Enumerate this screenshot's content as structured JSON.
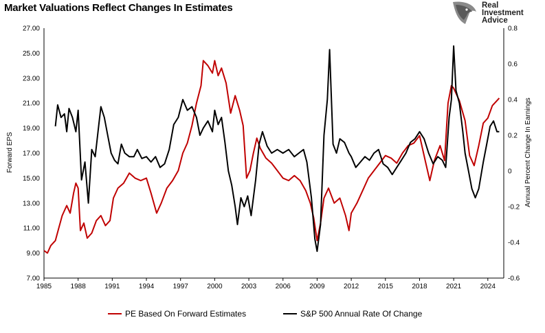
{
  "title": "Market Valuations Reflect Changes In Estimates",
  "logo": {
    "line1": "Real",
    "line2": "Investment",
    "line3": "Advice",
    "icon": "eagle-head-icon"
  },
  "colors": {
    "series_pe": "#c00000",
    "series_sp": "#000000"
  },
  "chart_data": {
    "type": "line",
    "title": "Market Valuations Reflect Changes In Estimates",
    "xlabel": "",
    "ylabel_left": "Forward EPS",
    "ylabel_right": "Annual Percent Change In Earnings",
    "xlim": [
      1985,
      2025.4
    ],
    "ylim_left": [
      7,
      27
    ],
    "ylim_right": [
      -0.6,
      0.8
    ],
    "x_ticks": [
      "1985",
      "1988",
      "1991",
      "1994",
      "1997",
      "2000",
      "2003",
      "2006",
      "2009",
      "2012",
      "2015",
      "2018",
      "2021",
      "2024"
    ],
    "y_ticks_left": [
      "27.00",
      "25.00",
      "23.00",
      "21.00",
      "19.00",
      "17.00",
      "15.00",
      "13.00",
      "11.00",
      "9.00",
      "7.00"
    ],
    "y_ticks_right": [
      "0.8",
      "0.6",
      "0.4",
      "0.2",
      "0",
      "-0.2",
      "-0.4",
      "-0.6"
    ],
    "grid": false,
    "legend": "bottom",
    "series": [
      {
        "name": "PE Based On Forward Estimates",
        "axis": "left",
        "points": [
          [
            1985.0,
            9.2
          ],
          [
            1985.3,
            9.0
          ],
          [
            1985.6,
            9.6
          ],
          [
            1986.0,
            10.0
          ],
          [
            1986.3,
            11.0
          ],
          [
            1986.6,
            12.0
          ],
          [
            1987.0,
            12.8
          ],
          [
            1987.3,
            12.2
          ],
          [
            1987.6,
            13.8
          ],
          [
            1987.8,
            14.6
          ],
          [
            1988.0,
            14.2
          ],
          [
            1988.2,
            10.8
          ],
          [
            1988.5,
            11.4
          ],
          [
            1988.8,
            10.2
          ],
          [
            1989.2,
            10.6
          ],
          [
            1989.6,
            11.6
          ],
          [
            1990.0,
            12.0
          ],
          [
            1990.4,
            11.2
          ],
          [
            1990.8,
            11.6
          ],
          [
            1991.1,
            13.4
          ],
          [
            1991.5,
            14.2
          ],
          [
            1992.0,
            14.6
          ],
          [
            1992.5,
            15.4
          ],
          [
            1993.0,
            15.0
          ],
          [
            1993.5,
            14.8
          ],
          [
            1994.0,
            15.0
          ],
          [
            1994.4,
            13.8
          ],
          [
            1994.9,
            12.2
          ],
          [
            1995.3,
            13.0
          ],
          [
            1995.8,
            14.2
          ],
          [
            1996.3,
            14.8
          ],
          [
            1996.8,
            15.6
          ],
          [
            1997.2,
            17.0
          ],
          [
            1997.6,
            17.8
          ],
          [
            1998.0,
            19.2
          ],
          [
            1998.4,
            21.0
          ],
          [
            1998.8,
            22.4
          ],
          [
            1999.0,
            24.4
          ],
          [
            1999.4,
            24.0
          ],
          [
            1999.8,
            23.4
          ],
          [
            2000.0,
            24.4
          ],
          [
            2000.3,
            23.2
          ],
          [
            2000.6,
            23.8
          ],
          [
            2001.0,
            22.6
          ],
          [
            2001.4,
            20.2
          ],
          [
            2001.8,
            21.6
          ],
          [
            2002.2,
            20.4
          ],
          [
            2002.5,
            19.2
          ],
          [
            2002.8,
            15.0
          ],
          [
            2003.1,
            15.6
          ],
          [
            2003.4,
            17.0
          ],
          [
            2003.7,
            18.2
          ],
          [
            2004.0,
            17.4
          ],
          [
            2004.5,
            16.6
          ],
          [
            2005.0,
            16.2
          ],
          [
            2005.5,
            15.6
          ],
          [
            2006.0,
            15.0
          ],
          [
            2006.5,
            14.8
          ],
          [
            2007.0,
            15.2
          ],
          [
            2007.5,
            14.8
          ],
          [
            2008.0,
            14.0
          ],
          [
            2008.4,
            13.0
          ],
          [
            2008.7,
            11.8
          ],
          [
            2009.0,
            10.0
          ],
          [
            2009.3,
            11.4
          ],
          [
            2009.6,
            13.4
          ],
          [
            2010.0,
            14.2
          ],
          [
            2010.5,
            13.0
          ],
          [
            2011.0,
            13.4
          ],
          [
            2011.5,
            12.0
          ],
          [
            2011.8,
            10.8
          ],
          [
            2012.0,
            12.2
          ],
          [
            2012.5,
            13.0
          ],
          [
            2013.0,
            14.0
          ],
          [
            2013.5,
            15.0
          ],
          [
            2014.0,
            15.6
          ],
          [
            2014.5,
            16.2
          ],
          [
            2015.0,
            16.8
          ],
          [
            2015.5,
            16.6
          ],
          [
            2016.0,
            16.2
          ],
          [
            2016.5,
            17.0
          ],
          [
            2017.0,
            17.6
          ],
          [
            2017.5,
            17.8
          ],
          [
            2018.0,
            18.4
          ],
          [
            2018.5,
            16.4
          ],
          [
            2018.9,
            14.8
          ],
          [
            2019.3,
            16.4
          ],
          [
            2019.8,
            17.6
          ],
          [
            2020.2,
            16.4
          ],
          [
            2020.5,
            21.0
          ],
          [
            2020.8,
            22.4
          ],
          [
            2021.0,
            22.2
          ],
          [
            2021.5,
            21.2
          ],
          [
            2022.0,
            19.6
          ],
          [
            2022.4,
            16.8
          ],
          [
            2022.8,
            16.0
          ],
          [
            2023.2,
            17.6
          ],
          [
            2023.6,
            19.4
          ],
          [
            2024.0,
            19.8
          ],
          [
            2024.4,
            20.8
          ],
          [
            2024.8,
            21.2
          ],
          [
            2025.0,
            21.4
          ]
        ]
      },
      {
        "name": "S&P 500 Annual Rate Of Change",
        "axis": "right",
        "points": [
          [
            1986.0,
            0.25
          ],
          [
            1986.2,
            0.37
          ],
          [
            1986.5,
            0.3
          ],
          [
            1986.8,
            0.32
          ],
          [
            1987.0,
            0.22
          ],
          [
            1987.2,
            0.35
          ],
          [
            1987.5,
            0.3
          ],
          [
            1987.8,
            0.22
          ],
          [
            1988.0,
            0.34
          ],
          [
            1988.3,
            -0.05
          ],
          [
            1988.6,
            0.05
          ],
          [
            1988.9,
            -0.18
          ],
          [
            1989.2,
            0.12
          ],
          [
            1989.5,
            0.08
          ],
          [
            1989.8,
            0.25
          ],
          [
            1990.0,
            0.36
          ],
          [
            1990.3,
            0.3
          ],
          [
            1990.6,
            0.2
          ],
          [
            1990.9,
            0.1
          ],
          [
            1991.2,
            0.06
          ],
          [
            1991.5,
            0.04
          ],
          [
            1991.8,
            0.15
          ],
          [
            1992.1,
            0.1
          ],
          [
            1992.5,
            0.08
          ],
          [
            1992.9,
            0.08
          ],
          [
            1993.2,
            0.12
          ],
          [
            1993.6,
            0.07
          ],
          [
            1994.0,
            0.08
          ],
          [
            1994.4,
            0.05
          ],
          [
            1994.8,
            0.08
          ],
          [
            1995.2,
            0.02
          ],
          [
            1995.6,
            0.04
          ],
          [
            1996.0,
            0.12
          ],
          [
            1996.4,
            0.26
          ],
          [
            1996.8,
            0.3
          ],
          [
            1997.2,
            0.4
          ],
          [
            1997.6,
            0.34
          ],
          [
            1998.0,
            0.36
          ],
          [
            1998.4,
            0.3
          ],
          [
            1998.7,
            0.2
          ],
          [
            1999.0,
            0.24
          ],
          [
            1999.4,
            0.28
          ],
          [
            1999.8,
            0.22
          ],
          [
            2000.0,
            0.34
          ],
          [
            2000.3,
            0.26
          ],
          [
            2000.6,
            0.3
          ],
          [
            2000.9,
            0.16
          ],
          [
            2001.2,
            0.0
          ],
          [
            2001.5,
            -0.08
          ],
          [
            2001.8,
            -0.2
          ],
          [
            2002.0,
            -0.3
          ],
          [
            2002.3,
            -0.15
          ],
          [
            2002.6,
            -0.2
          ],
          [
            2002.9,
            -0.14
          ],
          [
            2003.2,
            -0.25
          ],
          [
            2003.6,
            -0.05
          ],
          [
            2003.9,
            0.15
          ],
          [
            2004.2,
            0.22
          ],
          [
            2004.6,
            0.14
          ],
          [
            2005.0,
            0.1
          ],
          [
            2005.5,
            0.12
          ],
          [
            2006.0,
            0.1
          ],
          [
            2006.5,
            0.12
          ],
          [
            2007.0,
            0.08
          ],
          [
            2007.4,
            0.1
          ],
          [
            2007.8,
            0.12
          ],
          [
            2008.1,
            0.05
          ],
          [
            2008.5,
            -0.15
          ],
          [
            2008.8,
            -0.38
          ],
          [
            2009.0,
            -0.45
          ],
          [
            2009.3,
            -0.3
          ],
          [
            2009.6,
            0.2
          ],
          [
            2009.9,
            0.4
          ],
          [
            2010.1,
            0.68
          ],
          [
            2010.4,
            0.15
          ],
          [
            2010.7,
            0.1
          ],
          [
            2011.0,
            0.18
          ],
          [
            2011.4,
            0.16
          ],
          [
            2011.8,
            0.1
          ],
          [
            2012.0,
            0.08
          ],
          [
            2012.4,
            0.02
          ],
          [
            2012.8,
            0.05
          ],
          [
            2013.2,
            0.08
          ],
          [
            2013.6,
            0.06
          ],
          [
            2014.0,
            0.1
          ],
          [
            2014.4,
            0.12
          ],
          [
            2014.8,
            0.04
          ],
          [
            2015.2,
            0.02
          ],
          [
            2015.6,
            -0.02
          ],
          [
            2016.0,
            0.02
          ],
          [
            2016.4,
            0.06
          ],
          [
            2016.8,
            0.1
          ],
          [
            2017.2,
            0.16
          ],
          [
            2017.6,
            0.18
          ],
          [
            2018.0,
            0.22
          ],
          [
            2018.4,
            0.18
          ],
          [
            2018.8,
            0.1
          ],
          [
            2019.2,
            0.04
          ],
          [
            2019.6,
            0.08
          ],
          [
            2020.0,
            0.06
          ],
          [
            2020.3,
            0.02
          ],
          [
            2020.6,
            0.3
          ],
          [
            2020.8,
            0.4
          ],
          [
            2021.0,
            0.7
          ],
          [
            2021.2,
            0.45
          ],
          [
            2021.5,
            0.38
          ],
          [
            2021.8,
            0.22
          ],
          [
            2022.0,
            0.1
          ],
          [
            2022.3,
            0.0
          ],
          [
            2022.6,
            -0.1
          ],
          [
            2022.9,
            -0.15
          ],
          [
            2023.2,
            -0.1
          ],
          [
            2023.6,
            0.05
          ],
          [
            2023.9,
            0.15
          ],
          [
            2024.2,
            0.25
          ],
          [
            2024.5,
            0.28
          ],
          [
            2024.8,
            0.22
          ],
          [
            2025.0,
            0.22
          ]
        ]
      }
    ]
  }
}
